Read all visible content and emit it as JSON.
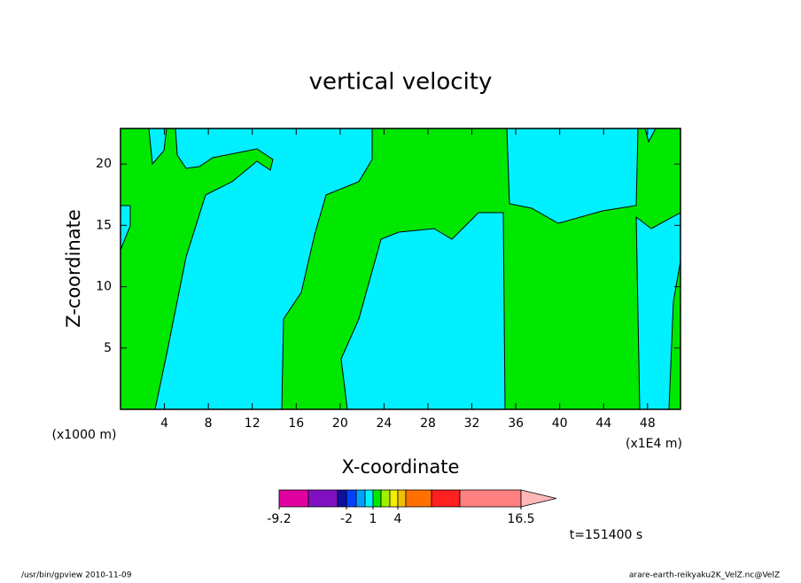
{
  "chart_data": {
    "type": "contour",
    "title": "vertical velocity",
    "x_label": "X-coordinate",
    "y_label": "Z-coordinate",
    "x_scale_label": "(x1E4 m)",
    "y_scale_label": "(x1000 m)",
    "xlim": [
      0,
      51
    ],
    "xticks": [
      4,
      8,
      12,
      16,
      20,
      24,
      28,
      32,
      36,
      40,
      44,
      48
    ],
    "ylim": [
      0,
      22.9
    ],
    "yticks": [
      5,
      10,
      15,
      20
    ],
    "colorbar": {
      "levels": [
        -9.2,
        -7,
        -4,
        -2,
        -1,
        0,
        1,
        2,
        3,
        4,
        5,
        8,
        11,
        16.5
      ],
      "colors": [
        "#e000a0",
        "#8010c0",
        "#1010a0",
        "#0040ff",
        "#00a0ff",
        "#00f0ff",
        "#00e800",
        "#a0f000",
        "#f0f000",
        "#f0c000",
        "#ff7000",
        "#ff2020",
        "#ff8080"
      ],
      "extend_color": "#ffb8b8",
      "ticks": [
        -9.2,
        -2,
        1,
        4,
        16.5
      ]
    },
    "annotation": "t=151400 s",
    "footer_left": "/usr/bin/gpview   2010-11-09",
    "footer_right": "arare-earth-reikyaku2K_VelZ.nc@VelZ"
  }
}
